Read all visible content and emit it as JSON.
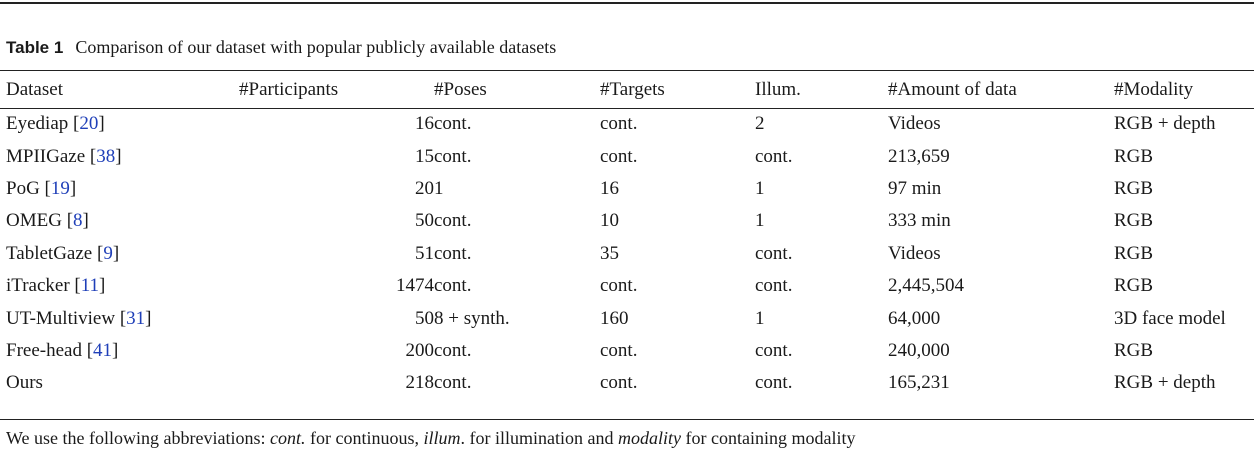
{
  "caption": {
    "label": "Table 1",
    "text": "Comparison of our dataset with popular publicly available datasets"
  },
  "columns": [
    "Dataset",
    "#Participants",
    "#Poses",
    "#Targets",
    "Illum.",
    "#Amount of data",
    "#Modality"
  ],
  "rows": [
    {
      "name": "Eyediap",
      "ref": "20",
      "participants": "16",
      "poses": "cont.",
      "targets": "cont.",
      "illum": "2",
      "amount": "Videos",
      "modality": "RGB + depth"
    },
    {
      "name": "MPIIGaze",
      "ref": "38",
      "participants": "15",
      "poses": "cont.",
      "targets": "cont.",
      "illum": "cont.",
      "amount": "213,659",
      "modality": "RGB"
    },
    {
      "name": "PoG",
      "ref": "19",
      "participants": "20",
      "poses": "1",
      "targets": "16",
      "illum": "1",
      "amount": "97 min",
      "modality": "RGB"
    },
    {
      "name": "OMEG",
      "ref": "8",
      "participants": "50",
      "poses": "cont.",
      "targets": "10",
      "illum": "1",
      "amount": "333 min",
      "modality": "RGB"
    },
    {
      "name": "TabletGaze",
      "ref": "9",
      "participants": "51",
      "poses": "cont.",
      "targets": "35",
      "illum": "cont.",
      "amount": "Videos",
      "modality": "RGB"
    },
    {
      "name": "iTracker",
      "ref": "11",
      "participants": "1474",
      "poses": "cont.",
      "targets": "cont.",
      "illum": "cont.",
      "amount": "2,445,504",
      "modality": "RGB"
    },
    {
      "name": "UT-Multiview",
      "ref": "31",
      "participants": "50",
      "poses": "8 + synth.",
      "targets": "160",
      "illum": "1",
      "amount": "64,000",
      "modality": "3D face model"
    },
    {
      "name": "Free-head",
      "ref": "41",
      "participants": "200",
      "poses": "cont.",
      "targets": "cont.",
      "illum": "cont.",
      "amount": "240,000",
      "modality": "RGB"
    },
    {
      "name": "Ours",
      "ref": "",
      "participants": "218",
      "poses": "cont.",
      "targets": "cont.",
      "illum": "cont.",
      "amount": "165,231",
      "modality": "RGB + depth"
    }
  ],
  "footnote": {
    "intro": "We use the following abbreviations: ",
    "t1": "cont.",
    "d1": " for continuous, ",
    "t2": "illum",
    "d2": ". for illumination and ",
    "t3": "modality",
    "d3": " for containing modality"
  }
}
